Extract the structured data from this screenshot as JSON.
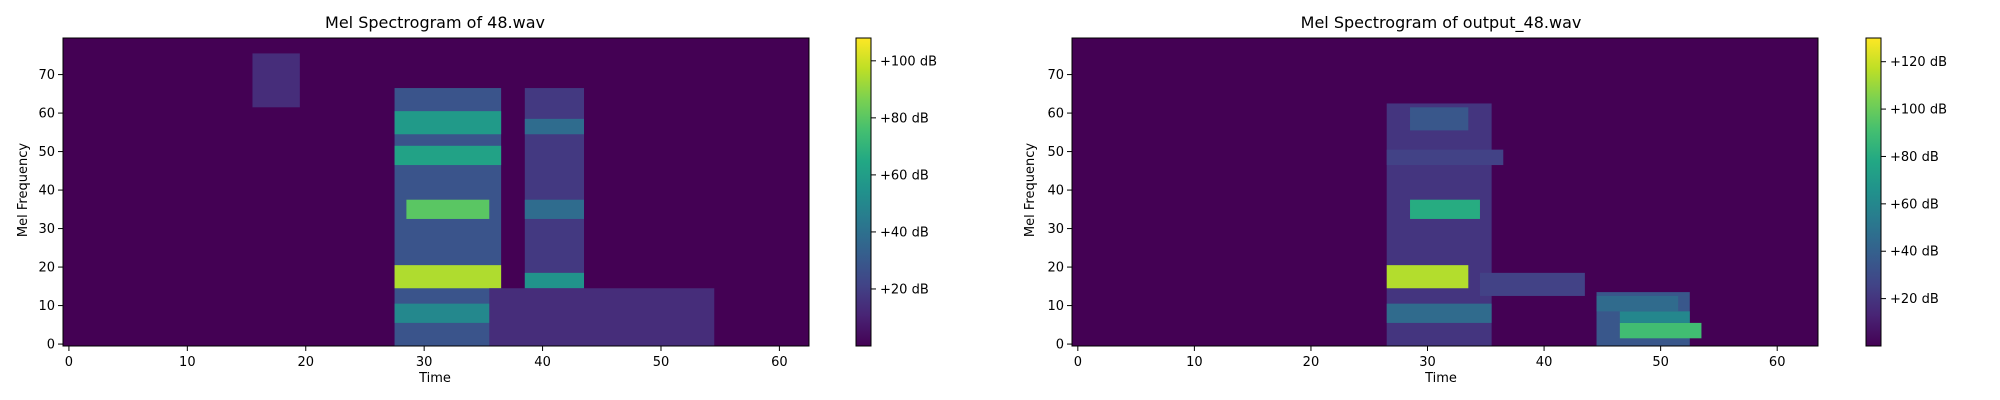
{
  "colors": {
    "viridis": [
      "#440154",
      "#482475",
      "#414487",
      "#355f8d",
      "#2a788e",
      "#21918c",
      "#22a884",
      "#44bf70",
      "#7ad151",
      "#bddf26",
      "#fde725"
    ],
    "axis": "#000000",
    "background": "#ffffff"
  },
  "chart_data": [
    {
      "type": "heatmap",
      "title": "Mel Spectrogram of 48.wav",
      "xlabel": "Time",
      "ylabel": "Mel Frequency",
      "xlim": [
        -0.5,
        62.5
      ],
      "ylim": [
        -0.5,
        79.5
      ],
      "xticks": [
        0,
        10,
        20,
        30,
        40,
        50,
        60
      ],
      "yticks": [
        0,
        10,
        20,
        30,
        40,
        50,
        60,
        70
      ],
      "colorbar": {
        "min": 0,
        "max": 108,
        "ticks": [
          20,
          40,
          60,
          80,
          100
        ],
        "tick_labels": [
          "+20 dB",
          "+40 dB",
          "+60 dB",
          "+80 dB",
          "+100 dB"
        ]
      },
      "value_range_db": [
        0,
        108
      ],
      "energy_regions": [
        {
          "t": [
            28,
            36
          ],
          "f": [
            0,
            66
          ],
          "db": 28
        },
        {
          "t": [
            28,
            36
          ],
          "f": [
            15,
            20
          ],
          "db": 95
        },
        {
          "t": [
            29,
            35
          ],
          "f": [
            33,
            37
          ],
          "db": 80
        },
        {
          "t": [
            28,
            36
          ],
          "f": [
            47,
            51
          ],
          "db": 62
        },
        {
          "t": [
            28,
            36
          ],
          "f": [
            55,
            60
          ],
          "db": 58
        },
        {
          "t": [
            28,
            36
          ],
          "f": [
            6,
            10
          ],
          "db": 50
        },
        {
          "t": [
            39,
            43
          ],
          "f": [
            0,
            66
          ],
          "db": 18
        },
        {
          "t": [
            39,
            43
          ],
          "f": [
            15,
            18
          ],
          "db": 55
        },
        {
          "t": [
            39,
            43
          ],
          "f": [
            33,
            37
          ],
          "db": 38
        },
        {
          "t": [
            39,
            43
          ],
          "f": [
            55,
            58
          ],
          "db": 38
        },
        {
          "t": [
            36,
            54
          ],
          "f": [
            0,
            14
          ],
          "db": 14
        },
        {
          "t": [
            16,
            19
          ],
          "f": [
            62,
            75
          ],
          "db": 14
        }
      ]
    },
    {
      "type": "heatmap",
      "title": "Mel Spectrogram of output_48.wav",
      "xlabel": "Time",
      "ylabel": "Mel Frequency",
      "xlim": [
        -0.5,
        63.5
      ],
      "ylim": [
        -0.5,
        79.5
      ],
      "xticks": [
        0,
        10,
        20,
        30,
        40,
        50,
        60
      ],
      "yticks": [
        0,
        10,
        20,
        30,
        40,
        50,
        60,
        70
      ],
      "colorbar": {
        "min": 0,
        "max": 130,
        "ticks": [
          20,
          40,
          60,
          80,
          100,
          120
        ],
        "tick_labels": [
          "+20 dB",
          "+40 dB",
          "+60 dB",
          "+80 dB",
          "+100 dB",
          "+120 dB"
        ]
      },
      "value_range_db": [
        0,
        130
      ],
      "energy_regions": [
        {
          "t": [
            27,
            35
          ],
          "f": [
            0,
            62
          ],
          "db": 20
        },
        {
          "t": [
            27,
            33
          ],
          "f": [
            15,
            20
          ],
          "db": 115
        },
        {
          "t": [
            29,
            34
          ],
          "f": [
            33,
            37
          ],
          "db": 80
        },
        {
          "t": [
            27,
            35
          ],
          "f": [
            6,
            10
          ],
          "db": 45
        },
        {
          "t": [
            29,
            33
          ],
          "f": [
            56,
            61
          ],
          "db": 35
        },
        {
          "t": [
            27,
            36
          ],
          "f": [
            47,
            50
          ],
          "db": 25
        },
        {
          "t": [
            35,
            43
          ],
          "f": [
            13,
            18
          ],
          "db": 25
        },
        {
          "t": [
            45,
            52
          ],
          "f": [
            0,
            13
          ],
          "db": 35
        },
        {
          "t": [
            47,
            53
          ],
          "f": [
            2,
            5
          ],
          "db": 90
        },
        {
          "t": [
            47,
            52
          ],
          "f": [
            6,
            8
          ],
          "db": 60
        },
        {
          "t": [
            45,
            51
          ],
          "f": [
            9,
            12
          ],
          "db": 45
        }
      ]
    }
  ]
}
